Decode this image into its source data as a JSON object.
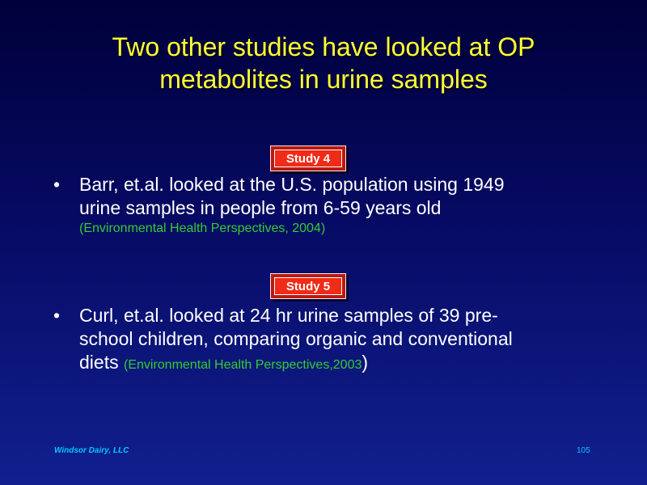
{
  "slide": {
    "title_line1": "Two other studies have looked at OP",
    "title_line2": "metabolites in urine samples",
    "badges": [
      {
        "label": "Study  4"
      },
      {
        "label": "Study  5"
      }
    ],
    "bullets": [
      {
        "symbol": "•",
        "line1": "Barr, et.al. looked at the U.S. population using 1949",
        "line2": "urine samples in people from 6-59 years old",
        "citation": "(Environmental Health Perspectives, 2004)"
      },
      {
        "symbol": "•",
        "line1": "Curl, et.al. looked at 24 hr urine samples of 39 pre-",
        "line2": "school children, comparing organic and conventional",
        "line3_text": "diets ",
        "citation": "(Environmental Health Perspectives,2003",
        "closing": ")"
      }
    ],
    "footer": {
      "company": "Windsor Dairy, LLC",
      "page_number": "105"
    },
    "colors": {
      "background_top": "#00003a",
      "background_bottom": "#11208f",
      "title": "#ffff33",
      "citation": "#33cc33",
      "badge": "#f02b18",
      "footer": "#00c8ff"
    }
  }
}
